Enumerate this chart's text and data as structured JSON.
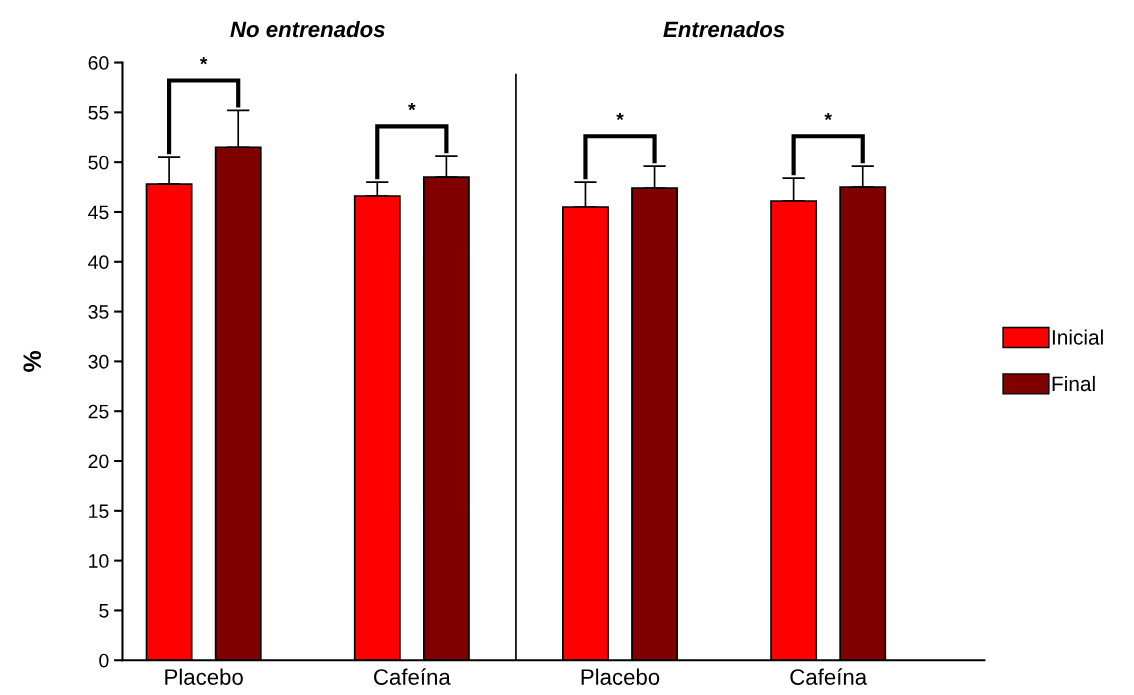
{
  "chart_data": {
    "type": "bar",
    "categories": [
      "Placebo",
      "Cafeína",
      "Placebo",
      "Cafeína"
    ],
    "series": [
      {
        "name": "Inicial",
        "color": "#ff0000",
        "values": [
          47.8,
          46.6,
          45.5,
          46.1
        ],
        "errors": [
          [
            47.8,
            50.5
          ],
          [
            46.6,
            48.0
          ],
          [
            45.5,
            48.0
          ],
          [
            46.1,
            48.4
          ]
        ]
      },
      {
        "name": "Final",
        "color": "#800000",
        "values": [
          51.5,
          48.5,
          47.4,
          47.5
        ],
        "errors": [
          [
            51.5,
            55.2
          ],
          [
            48.5,
            50.6
          ],
          [
            47.4,
            49.6
          ],
          [
            47.5,
            49.6
          ]
        ]
      }
    ],
    "ylabel": "%",
    "ylim": [
      0,
      60
    ],
    "yticks": [
      0,
      5,
      10,
      15,
      20,
      25,
      30,
      35,
      40,
      45,
      50,
      55,
      60
    ],
    "annotations": [
      "No entrenados",
      "Entrenados",
      "*",
      "*",
      "*",
      "*"
    ],
    "legend": "right",
    "grid": false
  }
}
